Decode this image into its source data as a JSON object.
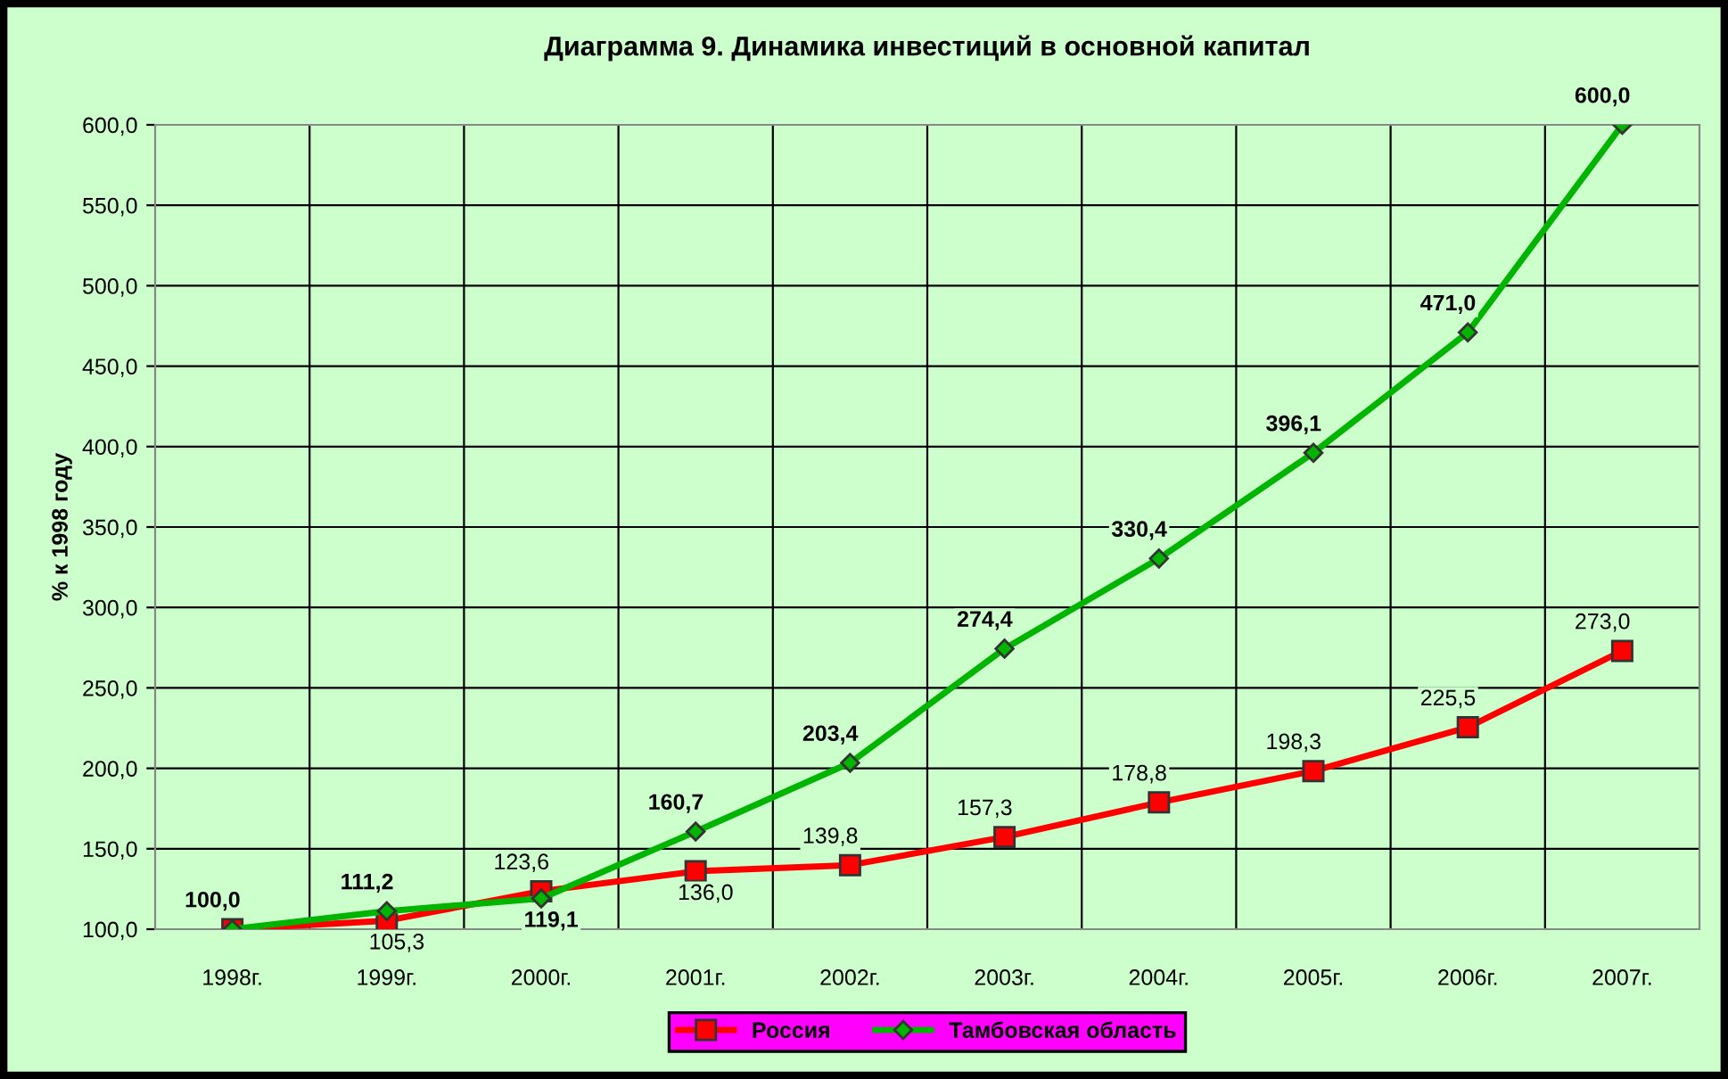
{
  "chart_data": {
    "type": "line",
    "title": "Диаграмма 9. Динамика инвестиций в основной капитал",
    "ylabel": "% к 1998 году",
    "categories": [
      "1998г.",
      "1999г.",
      "2000г.",
      "2001г.",
      "2002г.",
      "2003г.",
      "2004г.",
      "2005г.",
      "2006г.",
      "2007г."
    ],
    "series": [
      {
        "name": "Россия",
        "color": "#ff0000",
        "marker": "square",
        "values": [
          100.0,
          105.3,
          123.6,
          136.0,
          139.8,
          157.3,
          178.8,
          198.3,
          225.5,
          273.0
        ],
        "value_labels": [
          null,
          "105,3",
          "123,6",
          "136,0",
          "139,8",
          "157,3",
          "178,8",
          "198,3",
          "225,5",
          "273,0"
        ]
      },
      {
        "name": "Тамбовская область",
        "color": "#00b400",
        "marker": "diamond",
        "values": [
          100.0,
          111.2,
          119.1,
          160.7,
          203.4,
          274.4,
          330.4,
          396.1,
          471.0,
          600.0
        ],
        "value_labels": [
          "100,0",
          "111,2",
          "119,1",
          "160,7",
          "203,4",
          "274,4",
          "330,4",
          "396,1",
          "471,0",
          "600,0"
        ]
      }
    ],
    "ylim": [
      100,
      600
    ],
    "yticks": [
      {
        "value": 100,
        "label": "100,0"
      },
      {
        "value": 150,
        "label": "150,0"
      },
      {
        "value": 200,
        "label": "200,0"
      },
      {
        "value": 250,
        "label": "250,0"
      },
      {
        "value": 300,
        "label": "300,0"
      },
      {
        "value": 350,
        "label": "350,0"
      },
      {
        "value": 400,
        "label": "400,0"
      },
      {
        "value": 450,
        "label": "450,0"
      },
      {
        "value": 500,
        "label": "500,0"
      },
      {
        "value": 550,
        "label": "550,0"
      },
      {
        "value": 600,
        "label": "600,0"
      }
    ],
    "grid": true,
    "legend": "bottom",
    "line_style": "solid"
  }
}
